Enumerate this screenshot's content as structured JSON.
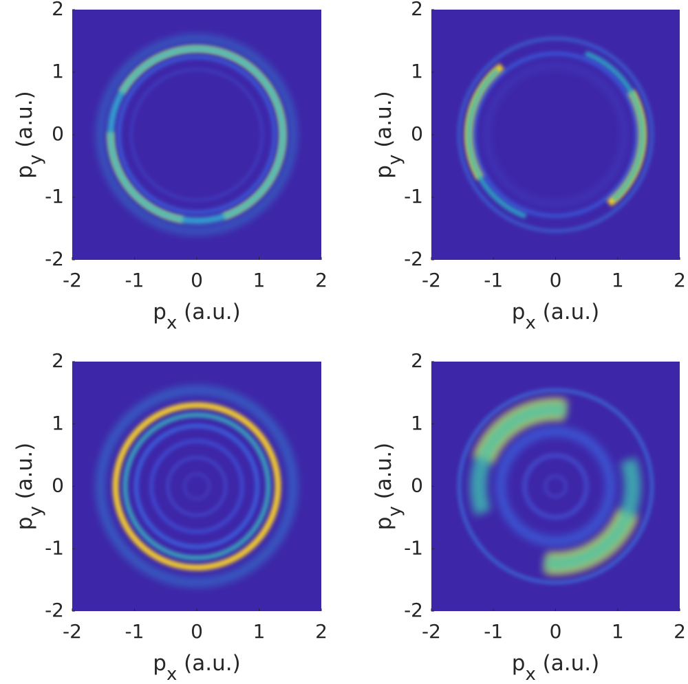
{
  "chart_data": [
    {
      "type": "heatmap",
      "background": "#3e26a8",
      "xlabel": [
        "p",
        "x",
        " (a.u.)"
      ],
      "ylabel": [
        "p",
        "y",
        " (a.u.)"
      ],
      "xlim": [
        -2,
        2
      ],
      "ylim": [
        -2,
        2
      ],
      "xticks": [
        -2,
        -1,
        0,
        1,
        2
      ],
      "yticks": [
        -2,
        -1,
        0,
        1,
        2
      ]
    },
    {
      "type": "heatmap",
      "background": "#3e26a8",
      "xlabel": [
        "p",
        "x",
        " (a.u.)"
      ],
      "ylabel": [
        "p",
        "y",
        " (a.u.)"
      ],
      "xlim": [
        -2,
        2
      ],
      "ylim": [
        -2,
        2
      ],
      "xticks": [
        -2,
        -1,
        0,
        1,
        2
      ],
      "yticks": [
        -2,
        -1,
        0,
        1,
        2
      ]
    },
    {
      "type": "heatmap",
      "background": "#3e26a8",
      "xlabel": [
        "p",
        "x",
        " (a.u.)"
      ],
      "ylabel": [
        "p",
        "y",
        " (a.u.)"
      ],
      "xlim": [
        -2,
        2
      ],
      "ylim": [
        -2,
        2
      ],
      "xticks": [
        -2,
        -1,
        0,
        1,
        2
      ],
      "yticks": [
        -2,
        -1,
        0,
        1,
        2
      ]
    },
    {
      "type": "heatmap",
      "background": "#3e26a8",
      "xlabel": [
        "p",
        "x",
        " (a.u.)"
      ],
      "ylabel": [
        "p",
        "y",
        " (a.u.)"
      ],
      "xlim": [
        -2,
        2
      ],
      "ylim": [
        -2,
        2
      ],
      "xticks": [
        -2,
        -1,
        0,
        1,
        2
      ],
      "yticks": [
        -2,
        -1,
        0,
        1,
        2
      ]
    }
  ]
}
